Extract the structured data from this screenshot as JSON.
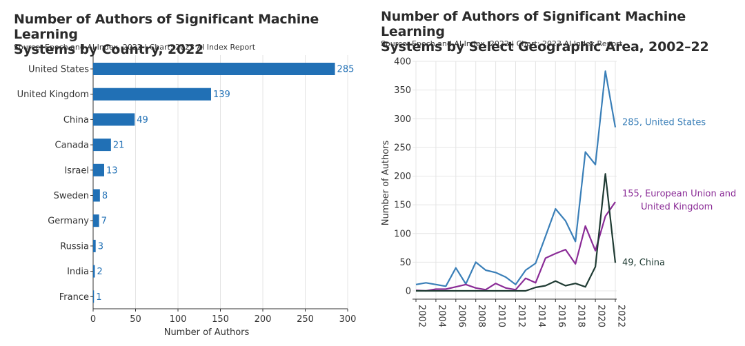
{
  "left": {
    "title_line1": "Number of Authors of Significant Machine Learning",
    "title_line2": "Systems by Country, 2022",
    "source": "Source: Epoch and AI Index, 2022 | Chart: 2023 AI Index Report"
  },
  "right": {
    "title_line1": "Number of Authors of Significant Machine Learning",
    "title_line2": "Systems by Select Geographic Area, 2002–22",
    "source": "Source: Epoch and AI Index, 2022 | Chart: 2023 AI Index Report"
  },
  "colors": {
    "bar": "#2170b5",
    "us": "#3a7fb8",
    "eu": "#8a2b96",
    "china": "#1f3b33",
    "grid": "#e4e4e4",
    "axis": "#333333"
  },
  "chart_data": [
    {
      "type": "bar",
      "orientation": "horizontal",
      "title": "Number of Authors of Significant Machine Learning Systems by Country, 2022",
      "categories": [
        "United States",
        "United Kingdom",
        "China",
        "Canada",
        "Israel",
        "Sweden",
        "Germany",
        "Russia",
        "India",
        "France"
      ],
      "values": [
        285,
        139,
        49,
        21,
        13,
        8,
        7,
        3,
        2,
        1
      ],
      "xlabel": "Number of Authors",
      "ylabel": "",
      "xlim": [
        0,
        300
      ],
      "xticks": [
        0,
        50,
        100,
        150,
        200,
        250,
        300
      ],
      "grid": true
    },
    {
      "type": "line",
      "title": "Number of Authors of Significant Machine Learning Systems by Select Geographic Area, 2002–22",
      "xlabel": "",
      "ylabel": "Number of Authors",
      "x": [
        2002,
        2003,
        2004,
        2005,
        2006,
        2007,
        2008,
        2009,
        2010,
        2011,
        2012,
        2013,
        2014,
        2015,
        2016,
        2017,
        2018,
        2019,
        2020,
        2021,
        2022
      ],
      "xticks": [
        2002,
        2004,
        2006,
        2008,
        2010,
        2012,
        2014,
        2016,
        2018,
        2020,
        2022
      ],
      "ylim": [
        0,
        400
      ],
      "yticks": [
        0,
        50,
        100,
        150,
        200,
        250,
        300,
        350,
        400
      ],
      "grid": true,
      "series": [
        {
          "name": "United States",
          "label": "285, United States",
          "color": "#3a7fb8",
          "values": [
            11,
            14,
            11,
            8,
            40,
            12,
            50,
            36,
            32,
            24,
            11,
            36,
            48,
            95,
            143,
            122,
            86,
            242,
            220,
            383,
            285
          ]
        },
        {
          "name": "European Union and United Kingdom",
          "label_lines": [
            "155, European Union and",
            "United Kingdom"
          ],
          "color": "#8a2b96",
          "values": [
            1,
            0,
            3,
            3,
            7,
            11,
            5,
            2,
            13,
            5,
            2,
            22,
            14,
            57,
            65,
            72,
            47,
            113,
            70,
            130,
            155
          ]
        },
        {
          "name": "China",
          "label": "49, China",
          "color": "#1f3b33",
          "values": [
            0,
            0,
            0,
            0,
            0,
            0,
            0,
            0,
            0,
            0,
            0,
            0,
            6,
            9,
            17,
            9,
            13,
            7,
            42,
            204,
            49
          ]
        }
      ]
    }
  ]
}
